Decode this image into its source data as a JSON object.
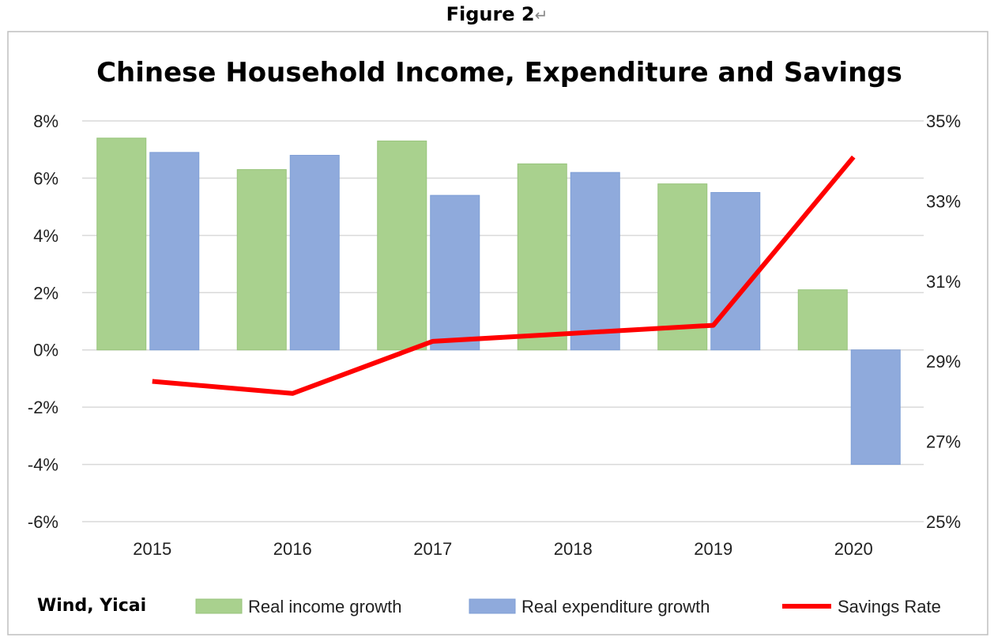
{
  "figure_label": "Figure 2",
  "chart_data": {
    "type": "bar",
    "title": "Chinese Household Income, Expenditure and Savings",
    "source": "Wind, Yicai",
    "categories": [
      "2015",
      "2016",
      "2017",
      "2018",
      "2019",
      "2020"
    ],
    "series": [
      {
        "name": "Real income growth",
        "type": "bar",
        "axis": "left",
        "color": "#a9d18e",
        "values": [
          7.4,
          6.3,
          7.3,
          6.5,
          5.8,
          2.1
        ]
      },
      {
        "name": "Real expenditure growth",
        "type": "bar",
        "axis": "left",
        "color": "#8faadc",
        "values": [
          6.9,
          6.8,
          5.4,
          6.2,
          5.5,
          -4.0
        ]
      },
      {
        "name": "Savings Rate",
        "type": "line",
        "axis": "right",
        "color": "#ff0000",
        "values": [
          28.5,
          28.2,
          29.5,
          29.7,
          29.9,
          34.1
        ]
      }
    ],
    "y_left": {
      "lim": [
        -6,
        8
      ],
      "ticks": [
        8,
        6,
        4,
        2,
        0,
        -2,
        -4,
        -6
      ],
      "tick_labels": [
        "8%",
        "6%",
        "4%",
        "2%",
        "0%",
        "-2%",
        "-4%",
        "-6%"
      ]
    },
    "y_right": {
      "lim": [
        25,
        35
      ],
      "ticks": [
        35,
        33,
        31,
        29,
        27,
        25
      ],
      "tick_labels": [
        "35%",
        "33%",
        "31%",
        "29%",
        "27%",
        "25%"
      ]
    },
    "grid": true,
    "legend": "bottom"
  }
}
